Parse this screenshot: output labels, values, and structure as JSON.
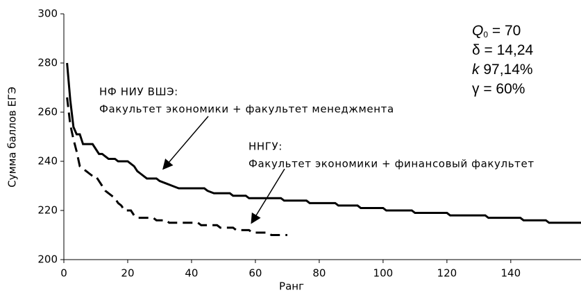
{
  "chart_data": {
    "type": "line",
    "x_label": "Ранг",
    "y_label": "Сумма баллов ЕГЭ",
    "xlim": [
      0,
      162
    ],
    "xticks": [
      0,
      20,
      40,
      60,
      80,
      100,
      120,
      140
    ],
    "ylim": [
      200,
      300
    ],
    "yticks": [
      200,
      220,
      240,
      260,
      280,
      300
    ],
    "series": [
      {
        "color": "#000000",
        "dash": "solid",
        "x": [
          1,
          2,
          3,
          4,
          5,
          6,
          9,
          10,
          11,
          12,
          13,
          14,
          16,
          17,
          20,
          21,
          22,
          23,
          24,
          26,
          29,
          30,
          32,
          34,
          36,
          44,
          45,
          47,
          52,
          53,
          57,
          58,
          68,
          69,
          76,
          77,
          85,
          86,
          92,
          93,
          100,
          101,
          109,
          110,
          120,
          121,
          132,
          133,
          143,
          144,
          151,
          152,
          162
        ],
        "values": [
          280,
          265,
          254,
          251,
          251,
          247,
          247,
          245,
          243,
          243,
          242,
          241,
          241,
          240,
          240,
          239,
          238,
          236,
          235,
          233,
          233,
          232,
          231,
          230,
          229,
          229,
          228,
          227,
          227,
          226,
          226,
          225,
          225,
          224,
          224,
          223,
          223,
          222,
          222,
          221,
          221,
          220,
          220,
          219,
          219,
          218,
          218,
          217,
          217,
          216,
          216,
          215,
          215
        ]
      },
      {
        "color": "#000000",
        "dash": "dashed",
        "x": [
          1,
          2,
          3,
          4,
          5,
          7,
          8,
          9,
          10,
          11,
          12,
          13,
          14,
          15,
          16,
          17,
          18,
          19,
          21,
          22,
          23,
          28,
          29,
          32,
          33,
          42,
          43,
          48,
          49,
          53,
          54,
          58,
          59,
          64,
          65,
          70
        ],
        "values": [
          266,
          255,
          249,
          244,
          238,
          236,
          235,
          234,
          234,
          232,
          230,
          228,
          227,
          226,
          225,
          223,
          222,
          220,
          220,
          218,
          217,
          217,
          216,
          216,
          215,
          215,
          214,
          214,
          213,
          213,
          212,
          212,
          211,
          211,
          210,
          210
        ]
      }
    ],
    "annotations": [
      {
        "lines": [
          "НФ НИУ ВШЭ:",
          "Факультет экономики + факультет менеджмента"
        ]
      },
      {
        "lines": [
          "ННГУ:",
          "Факультет экономики + финансовый факультет"
        ]
      }
    ],
    "parameters": [
      {
        "symbol": "Q",
        "subscript": "0",
        "text": " = 70"
      },
      {
        "symbol": "δ",
        "text": " = 14,24"
      },
      {
        "symbol": "k",
        "text": " 97,14%"
      },
      {
        "symbol": "γ",
        "text": " = 60%"
      }
    ]
  }
}
